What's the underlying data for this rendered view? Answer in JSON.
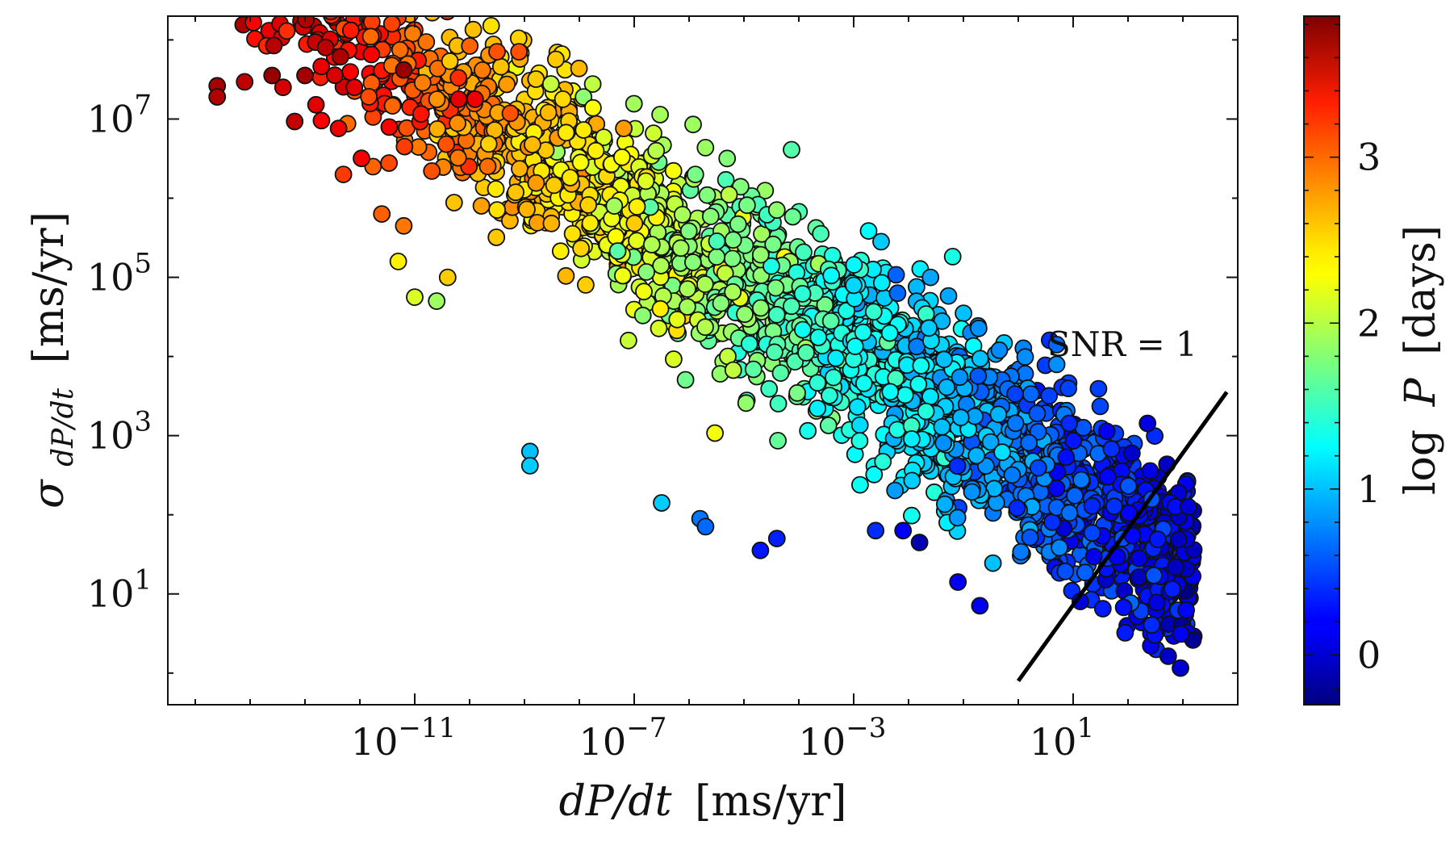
{
  "chart_data": {
    "type": "scatter",
    "title": "",
    "xlabel": {
      "math": "dP/dt",
      "unit": "[ms/yr]"
    },
    "ylabel": {
      "sigma": "σ",
      "sub": "dP/dt",
      "unit": "[ms/yr]"
    },
    "x_scale": "log",
    "y_scale": "log",
    "xlim_log10": [
      -15.5,
      4
    ],
    "ylim_log10": [
      -0.4,
      8.3
    ],
    "x_ticks": [
      {
        "exp": -11,
        "base": "10",
        "sup": "−11"
      },
      {
        "exp": -7,
        "base": "10",
        "sup": "−7"
      },
      {
        "exp": -3,
        "base": "10",
        "sup": "−3"
      },
      {
        "exp": 1,
        "base": "10",
        "sup": "1"
      }
    ],
    "y_ticks": [
      {
        "exp": 1,
        "base": "10",
        "sup": "1"
      },
      {
        "exp": 3,
        "base": "10",
        "sup": "3"
      },
      {
        "exp": 5,
        "base": "10",
        "sup": "5"
      },
      {
        "exp": 7,
        "base": "10",
        "sup": "7"
      }
    ],
    "colorbar": {
      "label": "log P [days]",
      "label_parts": {
        "log": "log",
        "var": "P",
        "unit": "[days]"
      },
      "min": -0.3,
      "max": 3.85,
      "ticks": [
        {
          "value": 0,
          "label": "0"
        },
        {
          "value": 1,
          "label": "1"
        },
        {
          "value": 2,
          "label": "2"
        },
        {
          "value": 3,
          "label": "3"
        }
      ],
      "colormap": "jet"
    },
    "reference_line": {
      "label": "SNR = 1",
      "x_log10": [
        0.0,
        3.8
      ],
      "y_log10": [
        -0.1,
        3.55
      ]
    },
    "cloud_model": {
      "description": "approximate density of points: log10(sigma) decreases with log10(dP/dt); color (log P) decreases with log10(dP/dt)",
      "n_points": 2600,
      "x_log10_range": [
        -14.8,
        3.2
      ],
      "sigma_vs_x": {
        "slope": -0.435,
        "intercept": 2.75,
        "scatter": 0.55
      },
      "logP_vs_x": {
        "slope": -0.205,
        "intercept": 0.72,
        "scatter": 0.18
      }
    },
    "points": [
      {
        "x": -14.6,
        "y": 7.42,
        "logP": 3.7
      },
      {
        "x": -14.6,
        "y": 7.28,
        "logP": 3.65
      },
      {
        "x": -14.1,
        "y": 7.47,
        "logP": 3.6
      },
      {
        "x": -13.6,
        "y": 7.55,
        "logP": 3.75
      },
      {
        "x": -13.4,
        "y": 7.4,
        "logP": 3.5
      },
      {
        "x": -13.0,
        "y": 7.55,
        "logP": 3.7
      },
      {
        "x": -12.8,
        "y": 7.18,
        "logP": 3.45
      },
      {
        "x": -12.7,
        "y": 6.98,
        "logP": 3.35
      },
      {
        "x": -12.1,
        "y": 7.4,
        "logP": 3.45
      },
      {
        "x": -11.2,
        "y": 7.62,
        "logP": 3.75
      },
      {
        "x": -9.5,
        "y": 7.85,
        "logP": 3.0
      },
      {
        "x": -9.1,
        "y": 7.85,
        "logP": 3.0
      },
      {
        "x": -8.3,
        "y": 7.25,
        "logP": 2.45
      },
      {
        "x": -10.2,
        "y": 7.25,
        "logP": 3.45
      },
      {
        "x": -9.9,
        "y": 7.25,
        "logP": 3.4
      },
      {
        "x": -12.3,
        "y": 6.3,
        "logP": 3.1
      },
      {
        "x": -11.6,
        "y": 5.8,
        "logP": 2.95
      },
      {
        "x": -11.2,
        "y": 5.65,
        "logP": 2.85
      },
      {
        "x": -11.3,
        "y": 5.2,
        "logP": 2.35
      },
      {
        "x": -10.4,
        "y": 5.0,
        "logP": 2.5
      },
      {
        "x": -11.0,
        "y": 4.75,
        "logP": 2.15
      },
      {
        "x": -10.6,
        "y": 4.7,
        "logP": 1.9
      },
      {
        "x": -8.9,
        "y": 2.8,
        "logP": 1.0
      },
      {
        "x": -8.9,
        "y": 2.62,
        "logP": 1.05
      },
      {
        "x": -6.5,
        "y": 2.15,
        "logP": 1.05
      },
      {
        "x": -5.8,
        "y": 1.95,
        "logP": 0.7
      },
      {
        "x": -5.7,
        "y": 1.85,
        "logP": 0.65
      },
      {
        "x": -4.7,
        "y": 1.55,
        "logP": 0.3
      },
      {
        "x": -4.4,
        "y": 1.7,
        "logP": 0.35
      },
      {
        "x": -2.6,
        "y": 1.8,
        "logP": 0.4
      },
      {
        "x": -1.8,
        "y": 1.65,
        "logP": -0.1
      },
      {
        "x": -2.1,
        "y": 1.8,
        "logP": 0.2
      },
      {
        "x": -0.7,
        "y": 0.85,
        "logP": 0.15
      },
      {
        "x": -1.1,
        "y": 1.15,
        "logP": 0.2
      },
      {
        "x": 3.1,
        "y": 2.1,
        "logP": 0.05
      },
      {
        "x": 2.2,
        "y": 1.45,
        "logP": 0.1
      },
      {
        "x": 0.7,
        "y": 3.9,
        "logP": 0.8
      },
      {
        "x": 0.7,
        "y": 4.15,
        "logP": 0.65
      },
      {
        "x": -1.6,
        "y": 5.0,
        "logP": 0.9
      },
      {
        "x": -2.2,
        "y": 4.8,
        "logP": 0.65
      },
      {
        "x": -3.0,
        "y": 4.9,
        "logP": 1.1
      },
      {
        "x": -2.5,
        "y": 5.45,
        "logP": 1.05
      },
      {
        "x": -3.6,
        "y": 5.55,
        "logP": 1.55
      },
      {
        "x": -4.4,
        "y": 5.85,
        "logP": 1.85
      },
      {
        "x": -7.7,
        "y": 6.6,
        "logP": 2.35
      },
      {
        "x": -6.6,
        "y": 6.6,
        "logP": 2.0
      }
    ]
  }
}
